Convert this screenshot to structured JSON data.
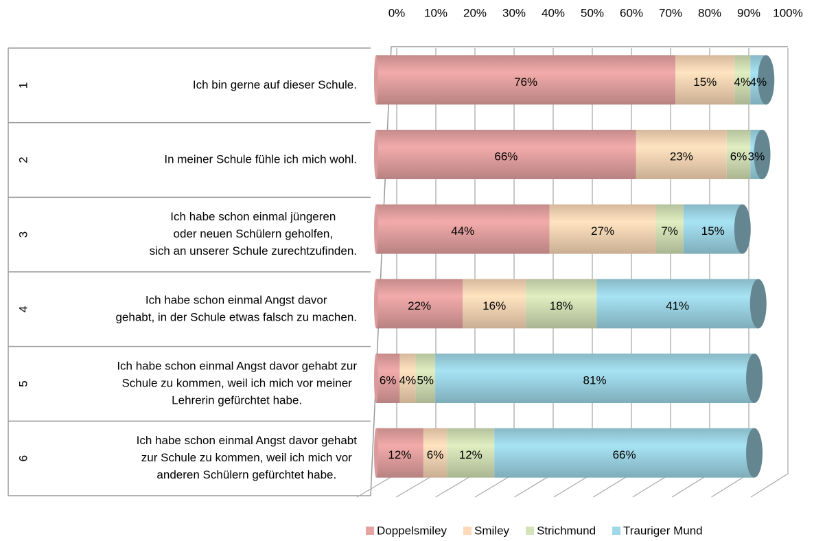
{
  "chart_data": {
    "type": "bar3d_stacked_horizontal",
    "categories": [
      "1",
      "2",
      "3",
      "4",
      "5",
      "6"
    ],
    "questions": [
      [
        "Ich bin gerne auf dieser Schule."
      ],
      [
        "In meiner Schule fühle ich mich wohl."
      ],
      [
        "Ich habe schon einmal jüngeren",
        "oder neuen Schülern geholfen,",
        "sich an unserer Schule zurechtzufinden."
      ],
      [
        "Ich habe schon einmal Angst davor",
        "gehabt, in der Schule etwas falsch zu machen."
      ],
      [
        "Ich habe schon einmal Angst davor gehabt zur",
        "Schule zu kommen, weil ich mich vor meiner",
        "Lehrerin gefürchtet habe."
      ],
      [
        "Ich habe schon einmal Angst davor gehabt",
        "zur Schule zu kommen, weil ich mich vor",
        "anderen Schülern gefürchtet habe."
      ]
    ],
    "series": [
      {
        "name": "Doppelsmiley",
        "color": "#e6a3a2",
        "values": [
          76,
          66,
          44,
          22,
          6,
          12
        ],
        "value_labels": [
          "76%",
          "66%",
          "44%",
          "22%",
          "6%",
          "12%"
        ]
      },
      {
        "name": "Smiley",
        "color": "#fcd9b8",
        "values": [
          15,
          23,
          27,
          16,
          4,
          6
        ],
        "value_labels": [
          "15%",
          "23%",
          "27%",
          "16%",
          "4%",
          "6%"
        ]
      },
      {
        "name": "Strichmund",
        "color": "#d5e3b8",
        "values": [
          4,
          6,
          7,
          18,
          5,
          12
        ],
        "value_labels": [
          "4%",
          "6%",
          "7%",
          "18%",
          "5%",
          "12%"
        ]
      },
      {
        "name": "Trauriger Mund",
        "color": "#9fd8e8",
        "values": [
          4,
          3,
          15,
          41,
          81,
          66
        ],
        "value_labels": [
          "4%",
          "3%",
          "15%",
          "41%",
          "81%",
          "66%"
        ]
      }
    ],
    "xlim": [
      0,
      100
    ],
    "xticks": [
      {
        "value": 0,
        "label": "0%"
      },
      {
        "value": 10,
        "label": "10%"
      },
      {
        "value": 20,
        "label": "20%"
      },
      {
        "value": 30,
        "label": "30%"
      },
      {
        "value": 40,
        "label": "40%"
      },
      {
        "value": 50,
        "label": "50%"
      },
      {
        "value": 60,
        "label": "60%"
      },
      {
        "value": 70,
        "label": "70%"
      },
      {
        "value": 80,
        "label": "80%"
      },
      {
        "value": 90,
        "label": "90%"
      },
      {
        "value": 100,
        "label": "100%"
      }
    ],
    "grid": true,
    "legend": "bottom"
  }
}
